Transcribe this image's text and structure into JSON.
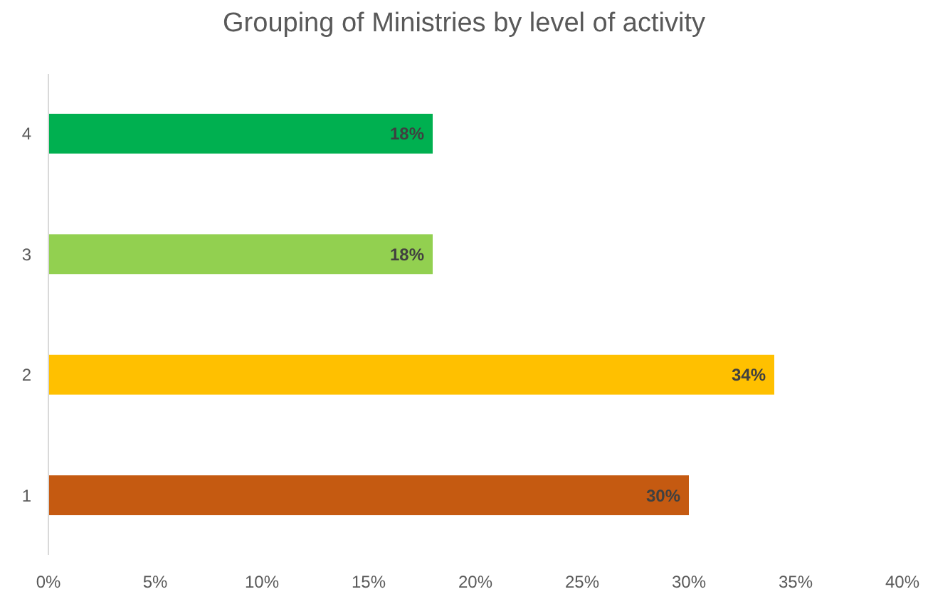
{
  "chart_data": {
    "type": "bar",
    "orientation": "horizontal",
    "title": "Grouping of Ministries by level of activity",
    "categories": [
      "4",
      "3",
      "2",
      "1"
    ],
    "values": [
      18,
      18,
      34,
      30
    ],
    "colors": [
      "#00b050",
      "#92d050",
      "#ffc000",
      "#c55a11"
    ],
    "value_labels": [
      "18%",
      "18%",
      "34%",
      "30%"
    ],
    "xlim": [
      0,
      40
    ],
    "xticks": [
      {
        "value": 0,
        "label": "0%"
      },
      {
        "value": 5,
        "label": "5%"
      },
      {
        "value": 10,
        "label": "10%"
      },
      {
        "value": 15,
        "label": "15%"
      },
      {
        "value": 20,
        "label": "20%"
      },
      {
        "value": 25,
        "label": "25%"
      },
      {
        "value": 30,
        "label": "30%"
      },
      {
        "value": 35,
        "label": "35%"
      },
      {
        "value": 40,
        "label": "40%"
      }
    ],
    "grid": false
  }
}
